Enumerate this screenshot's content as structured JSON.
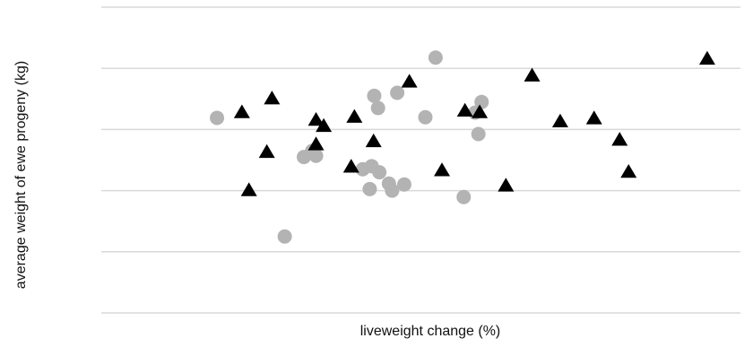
{
  "chart_data": {
    "type": "scatter",
    "title": "",
    "xlabel": "liveweight change (%)",
    "ylabel": "average weight of ewe progeny (kg)",
    "xlim": [
      0,
      100
    ],
    "ylim": [
      0,
      100
    ],
    "grid": true,
    "gridlines_y": [
      0,
      20,
      40,
      60,
      80,
      100
    ],
    "legend": "none",
    "series": [
      {
        "marker": "circle",
        "color": "#b3b3b3",
        "points": [
          {
            "x": 18.1,
            "y": 63.8
          },
          {
            "x": 28.7,
            "y": 25.0
          },
          {
            "x": 31.7,
            "y": 51.0
          },
          {
            "x": 33.0,
            "y": 53.0
          },
          {
            "x": 33.6,
            "y": 51.4
          },
          {
            "x": 40.9,
            "y": 47.0
          },
          {
            "x": 42.0,
            "y": 40.5
          },
          {
            "x": 42.3,
            "y": 48.0
          },
          {
            "x": 42.7,
            "y": 71.0
          },
          {
            "x": 43.3,
            "y": 67.0
          },
          {
            "x": 43.5,
            "y": 46.0
          },
          {
            "x": 45.0,
            "y": 42.3
          },
          {
            "x": 45.5,
            "y": 40.0
          },
          {
            "x": 46.3,
            "y": 72.0
          },
          {
            "x": 47.4,
            "y": 42.0
          },
          {
            "x": 50.7,
            "y": 64.0
          },
          {
            "x": 52.3,
            "y": 83.5
          },
          {
            "x": 56.7,
            "y": 37.9
          },
          {
            "x": 58.5,
            "y": 65.5
          },
          {
            "x": 59.0,
            "y": 58.5
          },
          {
            "x": 59.5,
            "y": 69.0
          }
        ]
      },
      {
        "marker": "triangle",
        "color": "#000000",
        "points": [
          {
            "x": 22.0,
            "y": 65.5
          },
          {
            "x": 23.1,
            "y": 40.0
          },
          {
            "x": 25.9,
            "y": 52.5
          },
          {
            "x": 26.7,
            "y": 70.0
          },
          {
            "x": 33.6,
            "y": 55.0
          },
          {
            "x": 33.6,
            "y": 63.0
          },
          {
            "x": 34.8,
            "y": 61.0
          },
          {
            "x": 39.1,
            "y": 47.7
          },
          {
            "x": 39.6,
            "y": 64.0
          },
          {
            "x": 42.6,
            "y": 56.0
          },
          {
            "x": 48.2,
            "y": 75.5
          },
          {
            "x": 53.3,
            "y": 46.5
          },
          {
            "x": 56.9,
            "y": 66.0
          },
          {
            "x": 59.2,
            "y": 65.5
          },
          {
            "x": 63.3,
            "y": 41.5
          },
          {
            "x": 67.4,
            "y": 77.5
          },
          {
            "x": 71.8,
            "y": 62.5
          },
          {
            "x": 77.1,
            "y": 63.5
          },
          {
            "x": 81.1,
            "y": 56.5
          },
          {
            "x": 82.5,
            "y": 46.0
          },
          {
            "x": 94.8,
            "y": 83.0
          }
        ]
      }
    ]
  }
}
